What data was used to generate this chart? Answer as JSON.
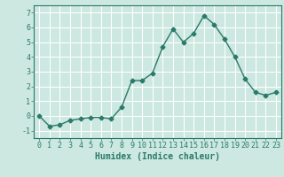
{
  "x": [
    0,
    1,
    2,
    3,
    4,
    5,
    6,
    7,
    8,
    9,
    10,
    11,
    12,
    13,
    14,
    15,
    16,
    17,
    18,
    19,
    20,
    21,
    22,
    23
  ],
  "y": [
    0.0,
    -0.7,
    -0.6,
    -0.3,
    -0.2,
    -0.1,
    -0.1,
    -0.2,
    0.6,
    2.4,
    2.4,
    2.9,
    4.7,
    5.9,
    5.0,
    5.6,
    6.8,
    6.2,
    5.2,
    4.0,
    2.5,
    1.6,
    1.4,
    1.6
  ],
  "line_color": "#2a7a6a",
  "marker": "D",
  "marker_size": 2.5,
  "linewidth": 1.0,
  "xlabel": "Humidex (Indice chaleur)",
  "xlim": [
    -0.5,
    23.5
  ],
  "ylim": [
    -1.5,
    7.5
  ],
  "yticks": [
    -1,
    0,
    1,
    2,
    3,
    4,
    5,
    6,
    7
  ],
  "xticks": [
    0,
    1,
    2,
    3,
    4,
    5,
    6,
    7,
    8,
    9,
    10,
    11,
    12,
    13,
    14,
    15,
    16,
    17,
    18,
    19,
    20,
    21,
    22,
    23
  ],
  "background_color": "#cce8e0",
  "grid_color": "#ffffff",
  "tick_color": "#2a7a6a",
  "label_color": "#2a7a6a",
  "xlabel_fontsize": 7,
  "tick_fontsize": 6
}
